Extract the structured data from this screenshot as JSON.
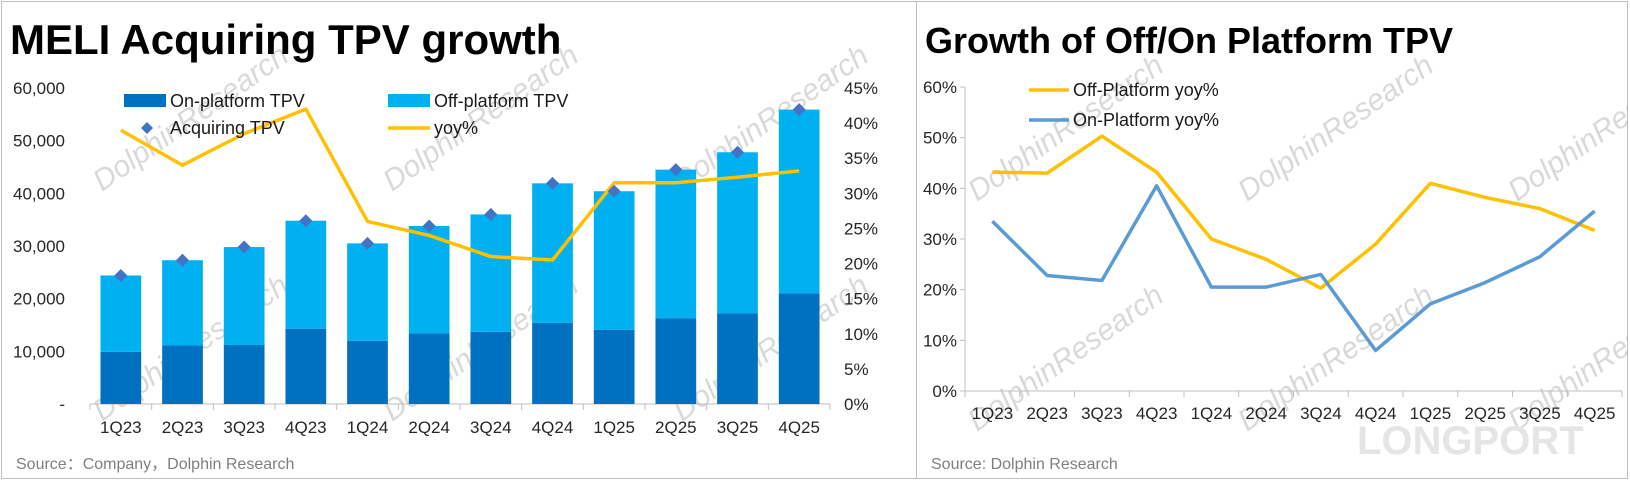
{
  "left_chart": {
    "title": "MELI Acquiring TPV growth",
    "source": "Source：Company，Dolphin Research",
    "watermark": "DolphinResearch",
    "colors": {
      "on_platform": "#0070C0",
      "off_platform": "#00B0F0",
      "acquiring": "#4472C4",
      "yoy": "#FFC000"
    }
  },
  "right_chart": {
    "title": "Growth of Off/On Platform TPV",
    "source": "Source: Dolphin Research",
    "watermark": "DolphinResearch",
    "brand_watermark": "LONGPORT",
    "colors": {
      "off_platform": "#FFC000",
      "on_platform": "#5B9BD5"
    }
  },
  "chart_data": [
    {
      "type": "bar",
      "title": "MELI Acquiring TPV growth",
      "categories": [
        "1Q23",
        "2Q23",
        "3Q23",
        "4Q23",
        "1Q24",
        "2Q24",
        "3Q24",
        "4Q24",
        "1Q25",
        "2Q25",
        "3Q25",
        "4Q25"
      ],
      "series": [
        {
          "name": "On-platform TPV",
          "kind": "stacked-bar",
          "axis": "left",
          "values": [
            9900,
            11100,
            11200,
            14300,
            12000,
            13400,
            13700,
            15400,
            14100,
            16300,
            17200,
            21000
          ]
        },
        {
          "name": "Off-platform TPV",
          "kind": "stacked-bar",
          "axis": "left",
          "values": [
            14500,
            16200,
            18600,
            20500,
            18500,
            20400,
            22300,
            26500,
            26300,
            28200,
            30600,
            34900
          ]
        },
        {
          "name": "Acquiring TPV",
          "kind": "marker",
          "axis": "left",
          "values": [
            24400,
            27300,
            29800,
            34800,
            30500,
            33800,
            36000,
            41900,
            40400,
            44500,
            47800,
            55900
          ]
        },
        {
          "name": "yoy%",
          "kind": "line",
          "axis": "right",
          "values": [
            39.0,
            34.0,
            38.5,
            42.0,
            26.0,
            24.0,
            21.0,
            20.5,
            31.5,
            31.5,
            32.3,
            33.2
          ]
        }
      ],
      "y_left": {
        "min": 0,
        "max": 60000,
        "step": 10000,
        "ticks": [
          "-",
          "10,000",
          "20,000",
          "30,000",
          "40,000",
          "50,000",
          "60,000"
        ]
      },
      "y_right": {
        "min": 0,
        "max": 45,
        "step": 5,
        "ticks": [
          "0%",
          "5%",
          "10%",
          "15%",
          "20%",
          "25%",
          "30%",
          "35%",
          "40%",
          "45%"
        ]
      },
      "legend": [
        "On-platform TPV",
        "Off-platform TPV",
        "Acquiring TPV",
        "yoy%"
      ],
      "legend_position": "top-left",
      "grid": false
    },
    {
      "type": "line",
      "title": "Growth of Off/On Platform TPV",
      "categories": [
        "1Q23",
        "2Q23",
        "3Q23",
        "4Q23",
        "1Q24",
        "2Q24",
        "3Q24",
        "4Q24",
        "1Q25",
        "2Q25",
        "3Q25",
        "4Q25"
      ],
      "series": [
        {
          "name": "Off-Platform yoy%",
          "values": [
            43.2,
            43.0,
            50.3,
            43.2,
            30.0,
            26.0,
            20.3,
            29.0,
            41.0,
            38.2,
            36.0,
            31.7
          ]
        },
        {
          "name": "On-Platform yoy%",
          "values": [
            33.5,
            22.8,
            21.8,
            40.5,
            20.5,
            20.5,
            23.0,
            8.0,
            17.2,
            21.4,
            26.5,
            35.5
          ]
        }
      ],
      "y": {
        "min": 0,
        "max": 60,
        "step": 10,
        "ticks": [
          "0%",
          "10%",
          "20%",
          "30%",
          "40%",
          "50%",
          "60%"
        ]
      },
      "legend": [
        "Off-Platform yoy%",
        "On-Platform yoy%"
      ],
      "legend_position": "top-left",
      "grid": false
    }
  ]
}
